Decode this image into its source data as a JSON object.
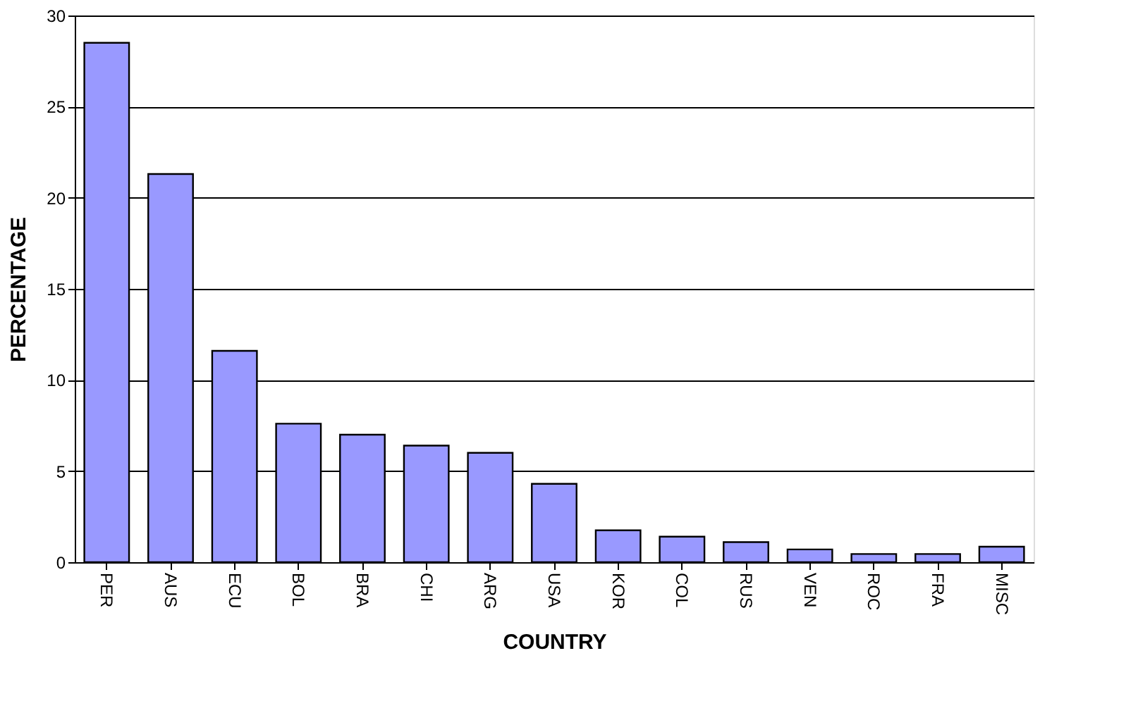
{
  "chart_data": {
    "type": "bar",
    "xlabel": "COUNTRY",
    "ylabel": "PERCENTAGE",
    "categories": [
      "PER",
      "AUS",
      "ECU",
      "BOL",
      "BRA",
      "CHI",
      "ARG",
      "USA",
      "KOR",
      "COL",
      "RUS",
      "VEN",
      "ROC",
      "FRA",
      "MISC"
    ],
    "values": [
      28.5,
      21.3,
      11.6,
      7.6,
      7.0,
      6.4,
      6.0,
      4.3,
      1.75,
      1.4,
      1.1,
      0.7,
      0.45,
      0.45,
      0.85
    ],
    "color": "#9999ff",
    "ylim": [
      0,
      30
    ],
    "yticks": [
      0,
      5,
      10,
      15,
      20,
      25,
      30
    ],
    "grid": "y"
  }
}
